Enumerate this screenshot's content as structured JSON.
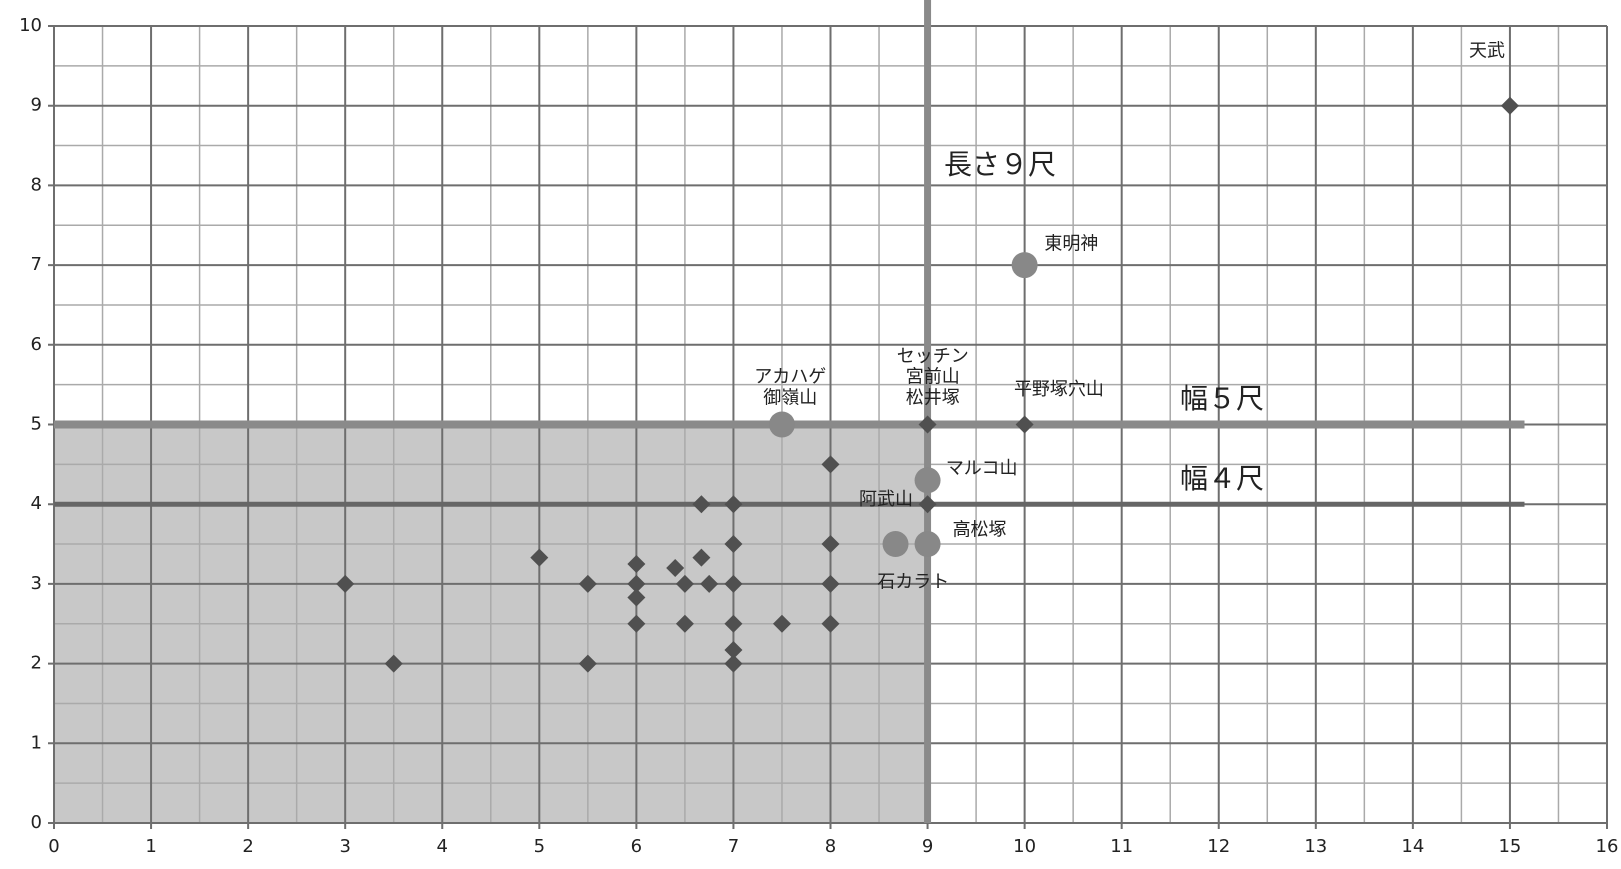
{
  "chart_data": {
    "type": "scatter",
    "xlim": [
      0,
      16
    ],
    "xticks": [
      0,
      1,
      2,
      3,
      4,
      5,
      6,
      7,
      8,
      9,
      10,
      11,
      12,
      13,
      14,
      15,
      16
    ],
    "ylim": [
      0,
      10
    ],
    "yticks": [
      0,
      1,
      2,
      3,
      4,
      5,
      6,
      7,
      8,
      9,
      10
    ],
    "grid": true,
    "minor_grid": true,
    "shaded_region": {
      "xlim": [
        0,
        9
      ],
      "ylim": [
        0,
        5
      ],
      "color": "#c8c8c8"
    },
    "reference_lines": [
      {
        "axis": "x",
        "value": 9,
        "label": "長さ９尺",
        "color": "#8a8a8a"
      },
      {
        "axis": "y",
        "value": 5,
        "label": "幅５尺",
        "color": "#8a8a8a"
      },
      {
        "axis": "y",
        "value": 4,
        "label": "幅４尺",
        "color": "#666666"
      }
    ],
    "series": [
      {
        "marker": "diamond",
        "color": "#505050",
        "x": [
          15,
          10,
          9,
          9,
          8,
          6.67,
          7,
          8,
          7,
          5,
          6.67,
          6.4,
          6,
          3,
          5.5,
          6,
          6.5,
          6.75,
          7,
          8,
          6,
          6,
          6.5,
          7,
          7.5,
          8,
          7,
          7,
          5.5,
          3.5
        ],
        "values": [
          9,
          5,
          5,
          4,
          4.5,
          4,
          4,
          3.5,
          3.5,
          3.33,
          3.33,
          3.2,
          3.25,
          3,
          3,
          3,
          3,
          3,
          3,
          3,
          2.83,
          2.5,
          2.5,
          2.5,
          2.5,
          2.5,
          2.17,
          2,
          2,
          2
        ],
        "labels": [
          "天武",
          "平野塚穴山",
          [
            "セッチン",
            "宮前山",
            "松井塚"
          ],
          "阿武山",
          null,
          null,
          null,
          null,
          null,
          null,
          null,
          null,
          null,
          null,
          null,
          null,
          null,
          null,
          null,
          null,
          null,
          null,
          null,
          null,
          null,
          null,
          null,
          null,
          null,
          null
        ]
      },
      {
        "marker": "circle",
        "color": "#888888",
        "x": [
          10,
          7.5,
          9,
          8.67,
          9
        ],
        "values": [
          7,
          5,
          4.3,
          3.5,
          3.5
        ],
        "labels": [
          "東明神",
          [
            "アカハゲ",
            "御嶺山"
          ],
          "マルコ山",
          "石カラト",
          "高松塚"
        ]
      }
    ]
  }
}
